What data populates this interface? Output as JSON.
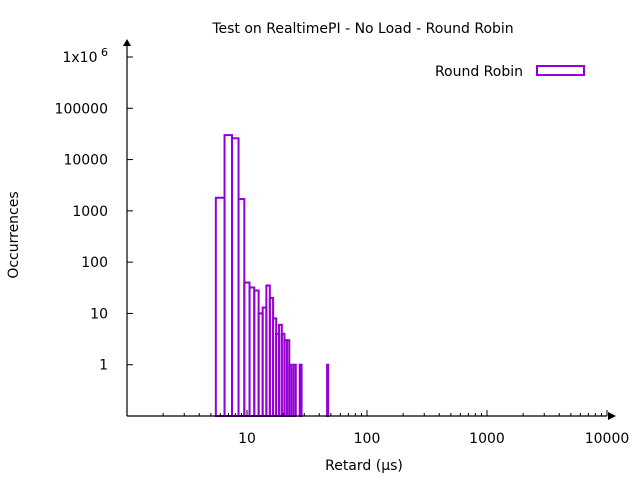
{
  "chart_data": {
    "type": "bar",
    "title": "Test on RealtimePI - No Load - Round Robin",
    "xlabel": "Retard (µs)",
    "ylabel": "Occurrences",
    "x_scale": "log",
    "y_scale": "log",
    "xlim": [
      1,
      10000
    ],
    "ylim": [
      0.1,
      1000000
    ],
    "x_ticks": [
      {
        "value": 10,
        "label": "10"
      },
      {
        "value": 100,
        "label": "100"
      },
      {
        "value": 1000,
        "label": "1000"
      },
      {
        "value": 10000,
        "label": "10000"
      }
    ],
    "y_ticks": [
      {
        "value": 1,
        "label": "1"
      },
      {
        "value": 10,
        "label": "10"
      },
      {
        "value": 100,
        "label": "100"
      },
      {
        "value": 1000,
        "label": "1000"
      },
      {
        "value": 10000,
        "label": "10000"
      },
      {
        "value": 100000,
        "label": "100000"
      },
      {
        "value": 1000000,
        "label": "1x10",
        "sup": "6"
      }
    ],
    "legend_position": "top-right",
    "grid": false,
    "series": [
      {
        "name": "Round Robin",
        "color": "#9400d3",
        "x": [
          6,
          7,
          8,
          9,
          10,
          11,
          12,
          13,
          14,
          15,
          16,
          17,
          18,
          19,
          20,
          21,
          22,
          23,
          25,
          28,
          47
        ],
        "values": [
          1800,
          30000,
          26000,
          1700,
          40,
          32,
          28,
          10,
          13,
          35,
          20,
          8,
          4,
          6,
          4,
          3,
          3,
          1,
          1,
          1,
          1
        ]
      }
    ]
  }
}
